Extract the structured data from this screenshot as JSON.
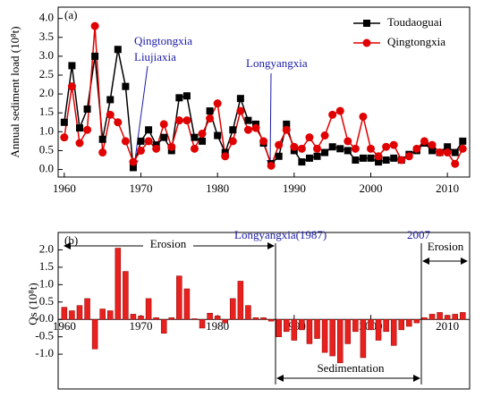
{
  "chart_data": [
    {
      "type": "line",
      "panel": "(a)",
      "y_label": "Annual sediment load (10⁸t)",
      "x": [
        1960,
        1961,
        1962,
        1963,
        1964,
        1965,
        1966,
        1967,
        1968,
        1969,
        1970,
        1971,
        1972,
        1973,
        1974,
        1975,
        1976,
        1977,
        1978,
        1979,
        1980,
        1981,
        1982,
        1983,
        1984,
        1985,
        1986,
        1987,
        1988,
        1989,
        1990,
        1991,
        1992,
        1993,
        1994,
        1995,
        1996,
        1997,
        1998,
        1999,
        2000,
        2001,
        2002,
        2003,
        2004,
        2005,
        2006,
        2007,
        2008,
        2009,
        2010,
        2011,
        2012
      ],
      "series": [
        {
          "name": "Toudaoguai",
          "color": "#000000",
          "marker": "square",
          "values": [
            1.25,
            2.75,
            1.1,
            1.6,
            3.0,
            0.8,
            1.85,
            3.18,
            2.2,
            0.05,
            0.75,
            1.05,
            0.65,
            0.85,
            0.5,
            1.9,
            1.95,
            0.85,
            0.75,
            1.55,
            0.9,
            0.45,
            1.05,
            1.88,
            1.3,
            1.2,
            0.7,
            0.15,
            0.35,
            1.2,
            0.5,
            0.2,
            0.3,
            0.35,
            0.45,
            0.6,
            0.55,
            0.5,
            0.25,
            0.3,
            0.3,
            0.2,
            0.25,
            0.3,
            0.25,
            0.4,
            0.5,
            0.7,
            0.5,
            0.45,
            0.6,
            0.45,
            0.75
          ]
        },
        {
          "name": "Qingtongxia",
          "color": "#e00000",
          "marker": "circle",
          "values": [
            0.85,
            2.2,
            0.7,
            1.05,
            3.8,
            0.45,
            1.45,
            1.25,
            0.75,
            0.2,
            0.5,
            0.75,
            0.55,
            1.2,
            0.6,
            1.3,
            1.3,
            0.55,
            0.95,
            1.35,
            1.75,
            0.35,
            0.75,
            1.55,
            1.05,
            1.1,
            0.75,
            0.1,
            0.65,
            1.05,
            0.6,
            0.55,
            0.85,
            0.55,
            0.9,
            1.45,
            1.55,
            0.75,
            0.55,
            1.4,
            0.55,
            0.35,
            0.6,
            0.65,
            0.25,
            0.35,
            0.55,
            0.75,
            0.65,
            0.45,
            0.45,
            0.15,
            0.55
          ]
        }
      ],
      "xlim": [
        1959.2,
        2012.9
      ],
      "xticks": [
        1960,
        1970,
        1980,
        1990,
        2000,
        2010
      ],
      "ylim": [
        -0.2,
        4.3
      ],
      "yticks": [
        {
          "value": 0,
          "label": "0.0"
        },
        {
          "value": 0.5,
          "label": "0.5"
        },
        {
          "value": 1,
          "label": "1.0"
        },
        {
          "value": 1.5,
          "label": "1.5"
        },
        {
          "value": 2,
          "label": "2.0"
        },
        {
          "value": 2.5,
          "label": "2.5"
        },
        {
          "value": 3,
          "label": "3.0"
        },
        {
          "value": 3.5,
          "label": "3.5"
        },
        {
          "value": 4,
          "label": "4.0"
        }
      ],
      "legend": "upper right",
      "annotations": [
        "Qingtongxia",
        "Liujiaxia",
        "Longyangxia"
      ]
    },
    {
      "type": "bar",
      "panel": "(b)",
      "y_label": "Qs (10⁸t)",
      "color": "#e8201e",
      "x": [
        1960,
        1961,
        1962,
        1963,
        1964,
        1965,
        1966,
        1967,
        1968,
        1969,
        1970,
        1971,
        1972,
        1973,
        1974,
        1975,
        1976,
        1977,
        1978,
        1979,
        1980,
        1981,
        1982,
        1983,
        1984,
        1985,
        1986,
        1987,
        1988,
        1989,
        1990,
        1991,
        1992,
        1993,
        1994,
        1995,
        1996,
        1997,
        1998,
        1999,
        2000,
        2001,
        2002,
        2003,
        2004,
        2005,
        2006,
        2007,
        2008,
        2009,
        2010,
        2011,
        2012
      ],
      "values": [
        0.35,
        0.25,
        0.4,
        0.6,
        -0.85,
        0.3,
        0.25,
        2.05,
        1.38,
        0.15,
        0.1,
        0.6,
        0.05,
        -0.4,
        0.05,
        1.25,
        0.88,
        0.02,
        -0.25,
        0.18,
        0.1,
        -0.1,
        0.6,
        1.1,
        0.4,
        0.05,
        0.05,
        -0.05,
        -0.5,
        -0.35,
        -0.6,
        -0.3,
        -0.7,
        -0.55,
        -0.95,
        -1.05,
        -1.25,
        -0.7,
        -0.35,
        -1.1,
        -0.3,
        -0.6,
        -0.35,
        -0.75,
        -0.3,
        -0.2,
        -0.1,
        0.05,
        0.15,
        0.2,
        0.12,
        0.15,
        0.2
      ],
      "xlim": [
        1959.2,
        2012.9
      ],
      "xticks": [
        1960,
        1970,
        1980,
        1990,
        2000,
        2010
      ],
      "ylim": [
        -2.0,
        2.5
      ],
      "yticks": [
        {
          "value": -1,
          "label": "-1.0"
        },
        {
          "value": -0.5,
          "label": "-0.5"
        },
        {
          "value": 0,
          "label": "0.0"
        },
        {
          "value": 0.5,
          "label": "0.5"
        },
        {
          "value": 1,
          "label": "1.0"
        },
        {
          "value": 1.5,
          "label": "1.5"
        },
        {
          "value": 2,
          "label": "2.0"
        }
      ],
      "annotations": [
        "Erosion",
        "Longyangxia(1987)",
        "2007",
        "Erosion",
        "Sedimentation"
      ]
    }
  ]
}
